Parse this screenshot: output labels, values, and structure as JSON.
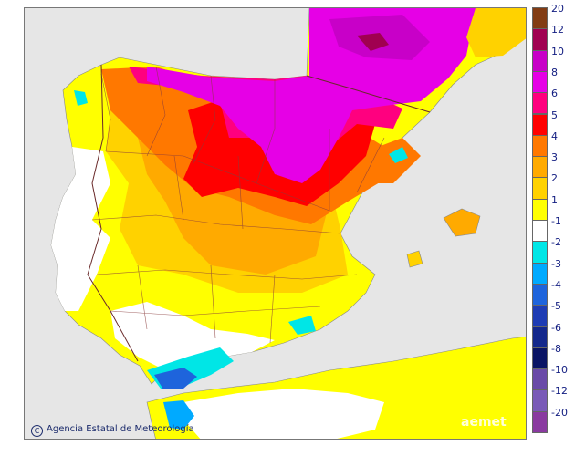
{
  "map": {
    "credit_text": "Agencia Estatal de Meteorología",
    "watermark_text": "aemet",
    "colors": {
      "sea": "#e6e6e6",
      "land_outside": "#ffffff",
      "c1": "#ffff00",
      "c2": "#ffd200",
      "c3": "#ffaa00",
      "c4": "#ff7800",
      "c5": "#ff0000",
      "c6": "#ff007f",
      "c8": "#e600e6",
      "c10": "#c800c8",
      "c12": "#a00050",
      "c20": "#823c14",
      "neg1": "#00e6e6",
      "neg2": "#00aaff",
      "neg3": "#1e64dc",
      "neg4": "#1e3cb4",
      "neg5": "#14288c",
      "neg6": "#0a1464"
    }
  },
  "legend": {
    "items": [
      {
        "label": "20",
        "color": "#823c14"
      },
      {
        "label": "12",
        "color": "#a00050"
      },
      {
        "label": "10",
        "color": "#c800c8"
      },
      {
        "label": "8",
        "color": "#e600e6"
      },
      {
        "label": "6",
        "color": "#ff007f"
      },
      {
        "label": "5",
        "color": "#ff0000"
      },
      {
        "label": "4",
        "color": "#ff7800"
      },
      {
        "label": "3",
        "color": "#ffaa00"
      },
      {
        "label": "2",
        "color": "#ffd200"
      },
      {
        "label": "1",
        "color": "#ffff00"
      },
      {
        "label": "-1",
        "color": "#ffffff"
      },
      {
        "label": "-2",
        "color": "#00e6e6"
      },
      {
        "label": "-3",
        "color": "#00aaff"
      },
      {
        "label": "-4",
        "color": "#1e64dc"
      },
      {
        "label": "-5",
        "color": "#1e3cb4"
      },
      {
        "label": "-6",
        "color": "#14288c"
      },
      {
        "label": "-8",
        "color": "#0a1464"
      },
      {
        "label": "-10",
        "color": "#6a4aa8"
      },
      {
        "label": "-12",
        "color": "#7a5ab8"
      },
      {
        "label": "-20",
        "color": "#8a3aa0"
      }
    ]
  }
}
